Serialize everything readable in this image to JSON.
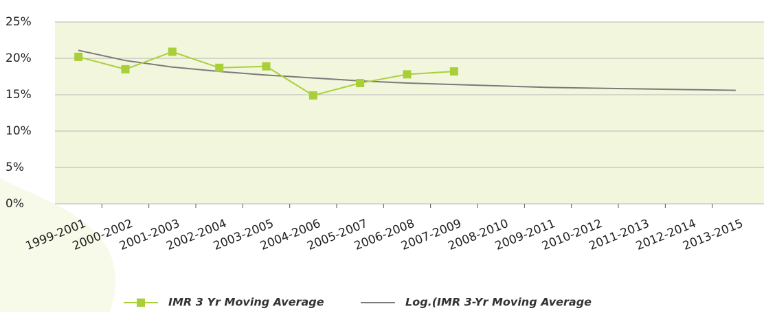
{
  "chart_data": {
    "type": "line",
    "categories": [
      "1999-2001",
      "2000-2002",
      "2001-2003",
      "2002-2004",
      "2003-2005",
      "2004-2006",
      "2005-2007",
      "2006-2008",
      "2007-2009",
      "2008-2010",
      "2009-2011",
      "2010-2012",
      "2011-2013",
      "2012-2014",
      "2013-2015"
    ],
    "series": [
      {
        "name": "IMR 3 Yr Moving Average",
        "color": "#a9cf38",
        "marker": "square",
        "values": [
          20.2,
          18.5,
          20.9,
          18.7,
          18.9,
          14.9,
          16.6,
          17.8,
          18.2,
          null,
          null,
          null,
          null,
          null,
          null
        ]
      },
      {
        "name": "Log.(IMR 3-Yr Moving Average",
        "color": "#7a7a7a",
        "marker": "none",
        "values": [
          21.1,
          19.7,
          18.8,
          18.2,
          17.7,
          17.3,
          16.9,
          16.6,
          16.4,
          16.2,
          16.0,
          15.9,
          15.8,
          15.7,
          15.6
        ]
      }
    ],
    "ylim": [
      0,
      25
    ],
    "yticks": [
      {
        "value": 0,
        "label": "0%"
      },
      {
        "value": 5,
        "label": "5%"
      },
      {
        "value": 10,
        "label": "10%"
      },
      {
        "value": 15,
        "label": "15%"
      },
      {
        "value": 20,
        "label": "20%"
      },
      {
        "value": 25,
        "label": "25%"
      }
    ],
    "grid": true,
    "plot_background": "#f1f6dc",
    "legend": "bottom"
  }
}
